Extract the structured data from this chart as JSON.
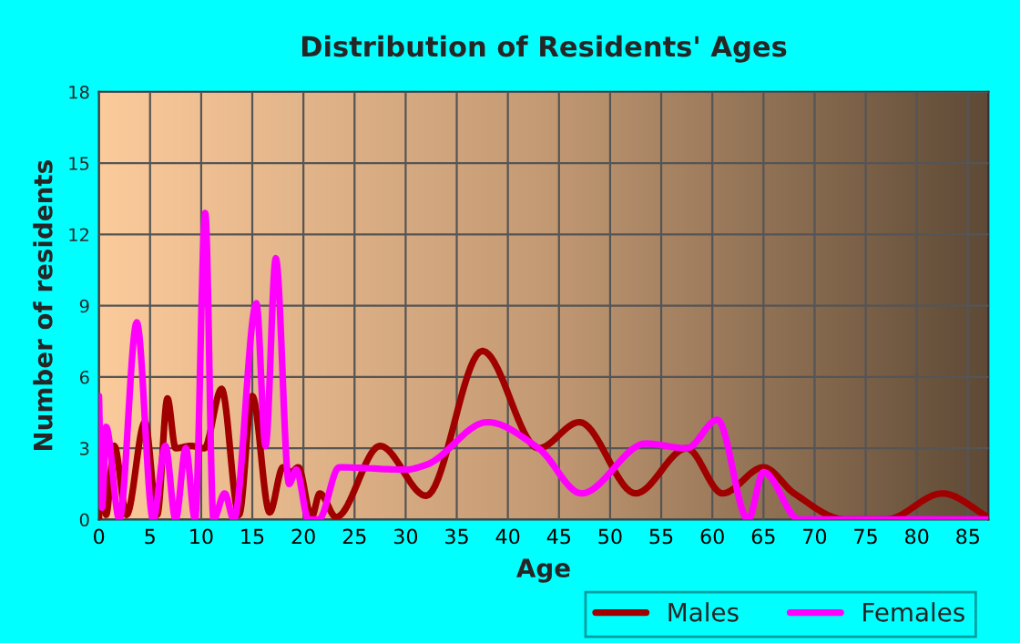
{
  "chart_data": {
    "type": "line",
    "title": "Distribution of Residents' Ages",
    "xlabel": "Age",
    "ylabel": "Number of residents",
    "xlim": [
      0,
      87
    ],
    "xticks": [
      0,
      5,
      10,
      15,
      20,
      25,
      30,
      35,
      40,
      45,
      50,
      55,
      60,
      65,
      70,
      75,
      80,
      85
    ],
    "ylim": [
      0,
      18
    ],
    "yticks": [
      0,
      3,
      6,
      9,
      12,
      15,
      18
    ],
    "grid": true,
    "legend": "bottom",
    "marker": "none",
    "line_style": "solid",
    "series": [
      {
        "name": "Males",
        "color": "#a00000",
        "x": [
          0,
          0.3,
          0.7,
          1.5,
          2.7,
          4.5,
          5.7,
          6.7,
          7.5,
          9,
          10.3,
          12,
          13.7,
          15,
          16.7,
          18,
          18.8,
          19.5,
          20.8,
          21.6,
          23.2,
          27.5,
          32,
          37.5,
          43,
          47,
          52.5,
          57.5,
          61,
          65,
          68,
          73,
          77,
          82.5,
          87
        ],
        "values": [
          0,
          3,
          0.2,
          3.1,
          0.2,
          4.1,
          0.2,
          5.1,
          3,
          3.1,
          3,
          5.5,
          0.2,
          5.2,
          0.3,
          2.2,
          2,
          2.2,
          0.1,
          1.1,
          0.1,
          3.1,
          1,
          7.1,
          3,
          4.1,
          1.1,
          3,
          1.1,
          2.2,
          1.1,
          0,
          0,
          1.1,
          0.1
        ]
      },
      {
        "name": "Females",
        "color": "#ff00ff",
        "x": [
          0,
          0.3,
          0.7,
          2,
          3.7,
          5.3,
          6.5,
          7.5,
          8.5,
          9.4,
          10.4,
          11.2,
          12.3,
          13.2,
          15.4,
          16.3,
          17.3,
          18.6,
          19.3,
          20.5,
          21.5,
          23.5,
          30,
          32,
          38,
          43,
          47.2,
          53.5,
          57.5,
          60.5,
          63.5,
          65,
          68.5,
          87
        ],
        "values": [
          5.2,
          0.5,
          3.9,
          0,
          8.3,
          0,
          3.1,
          0,
          3,
          0,
          12.9,
          0,
          1.1,
          0,
          9.1,
          3.1,
          11,
          1.5,
          2.1,
          0,
          0,
          2.2,
          2.1,
          2.3,
          4.1,
          3,
          1.1,
          3.2,
          3,
          4.2,
          0,
          2,
          0,
          0
        ]
      }
    ]
  }
}
